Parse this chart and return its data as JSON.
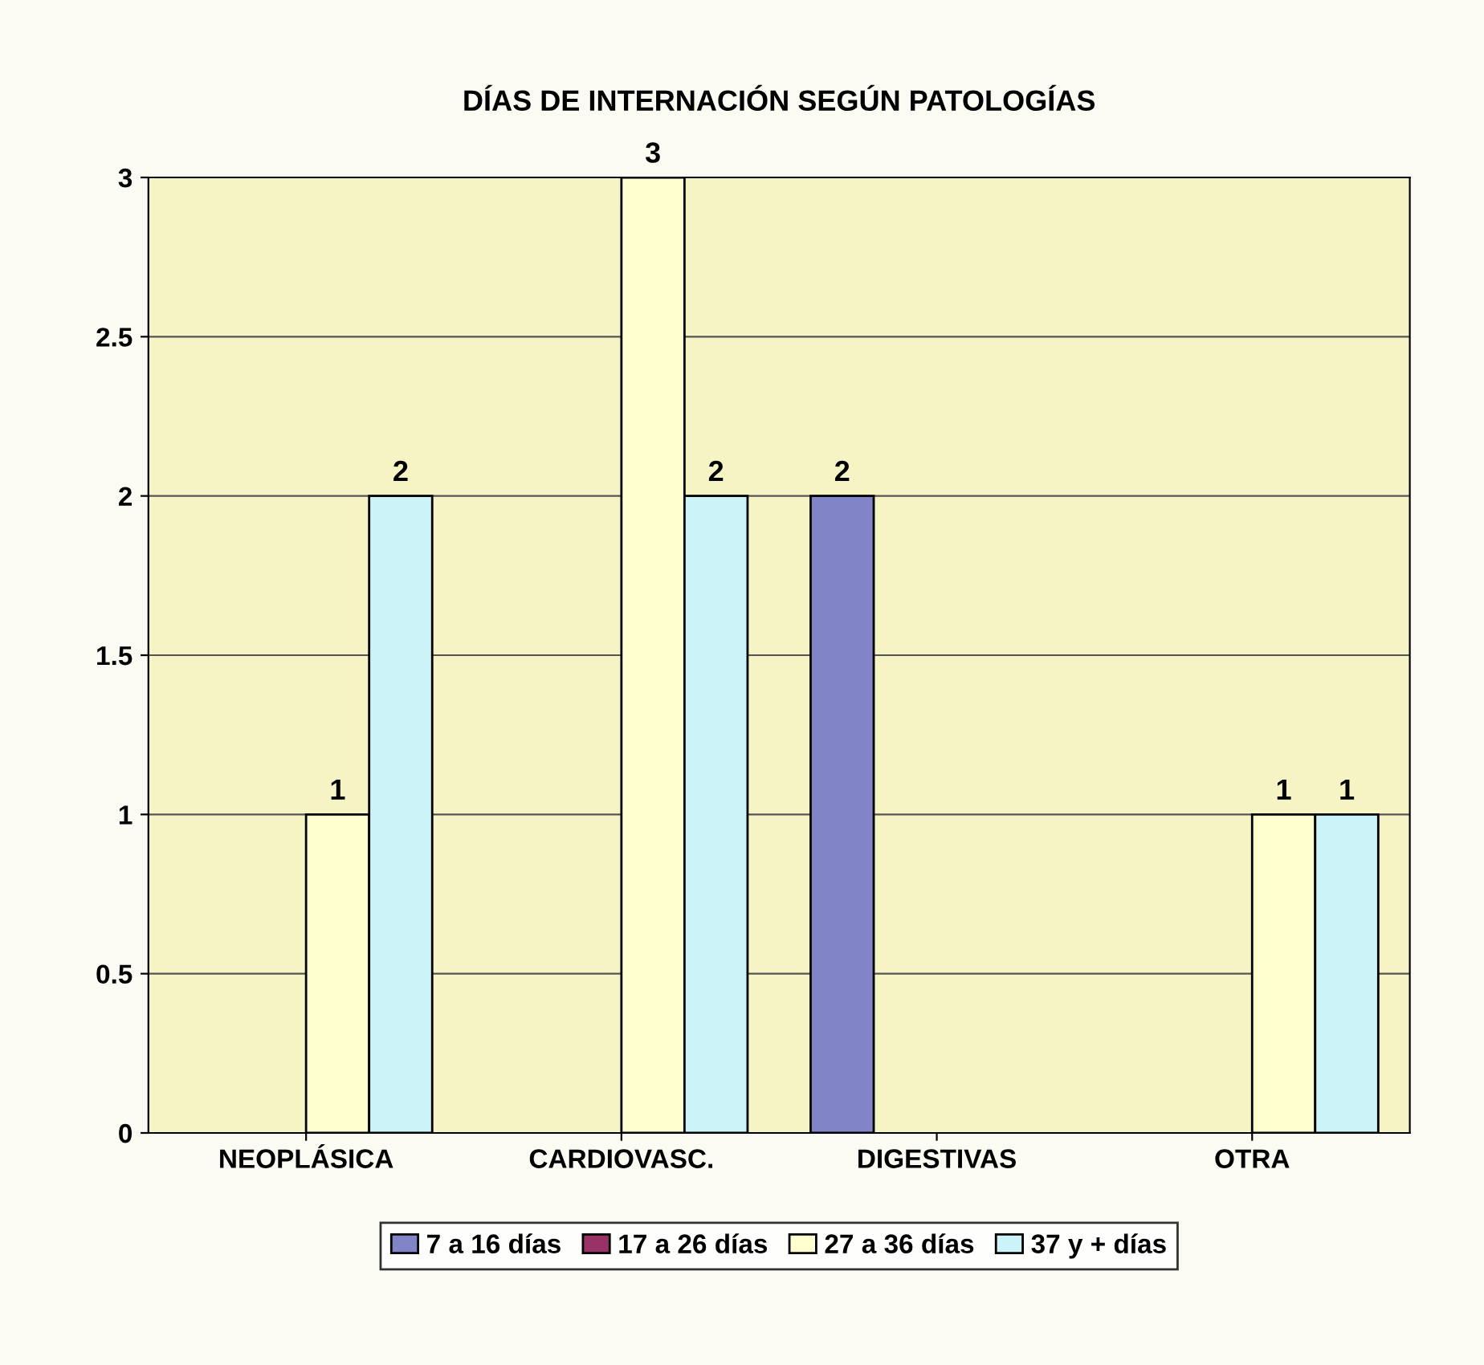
{
  "chart_data": {
    "type": "bar",
    "title": "DÍAS DE INTERNACIÓN SEGÚN PATOLOGÍAS",
    "categories": [
      "NEOPLÁSICA",
      "CARDIOVASC.",
      "DIGESTIVAS",
      "OTRA"
    ],
    "series": [
      {
        "name": "7 a 16 días",
        "color": "#8284c8",
        "values": [
          null,
          null,
          2,
          null
        ]
      },
      {
        "name": "17 a 26 días",
        "color": "#993366",
        "values": [
          null,
          null,
          null,
          null
        ]
      },
      {
        "name": "27 a 36 días",
        "color": "#ffffd0",
        "values": [
          1,
          3,
          null,
          1
        ]
      },
      {
        "name": "37 y + días",
        "color": "#ccf4f8",
        "values": [
          2,
          2,
          null,
          1
        ]
      }
    ],
    "ylim": [
      0,
      3
    ],
    "yticks": [
      0,
      0.5,
      1,
      1.5,
      2,
      2.5,
      3
    ],
    "grid": "y",
    "legend": "bottom",
    "data_labels": true
  }
}
